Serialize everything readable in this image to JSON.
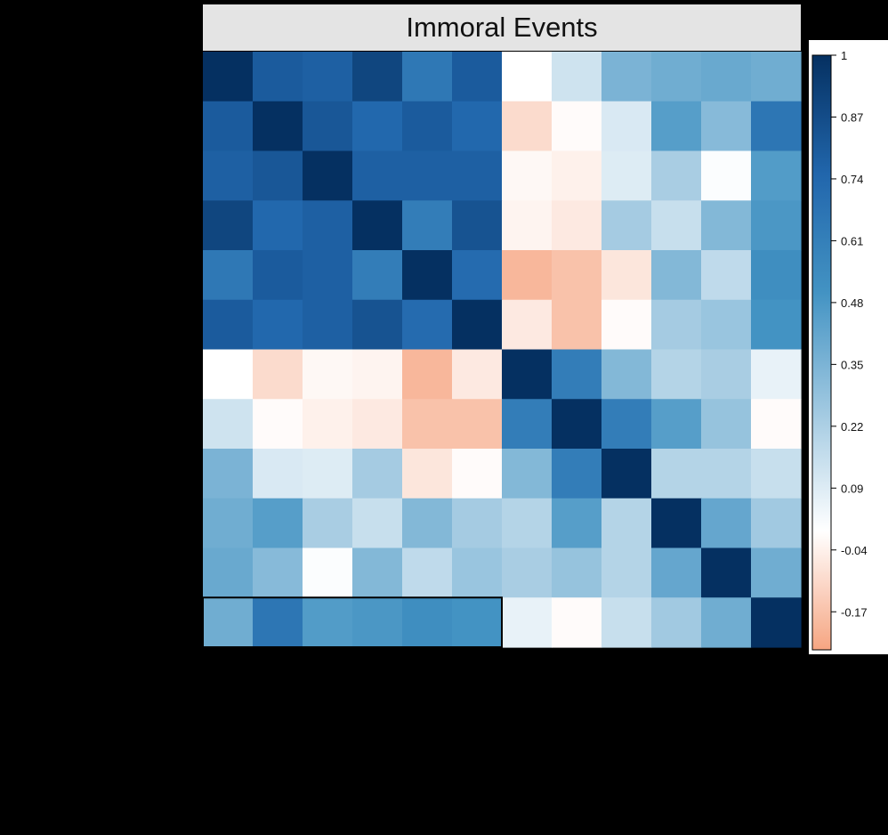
{
  "chart_data": {
    "type": "heatmap",
    "title": "Immoral Events",
    "xlabel": "",
    "ylabel": "",
    "rows": 12,
    "cols": 12,
    "values": [
      [
        1.0,
        0.8,
        0.78,
        0.9,
        0.65,
        0.8,
        0.0,
        0.13,
        0.35,
        0.38,
        0.4,
        0.38
      ],
      [
        0.8,
        1.0,
        0.82,
        0.74,
        0.8,
        0.74,
        -0.1,
        -0.01,
        0.1,
        0.45,
        0.32,
        0.66
      ],
      [
        0.78,
        0.82,
        1.0,
        0.78,
        0.78,
        0.78,
        -0.02,
        -0.04,
        0.09,
        0.23,
        0.01,
        0.46
      ],
      [
        0.9,
        0.74,
        0.78,
        1.0,
        0.62,
        0.84,
        -0.03,
        -0.06,
        0.24,
        0.15,
        0.33,
        0.48
      ],
      [
        0.65,
        0.8,
        0.78,
        0.62,
        1.0,
        0.72,
        -0.2,
        -0.17,
        -0.07,
        0.33,
        0.17,
        0.53
      ],
      [
        0.8,
        0.74,
        0.78,
        0.84,
        0.72,
        1.0,
        -0.06,
        -0.17,
        -0.01,
        0.24,
        0.27,
        0.5
      ],
      [
        0.0,
        -0.1,
        -0.02,
        -0.03,
        -0.2,
        -0.06,
        1.0,
        0.62,
        0.33,
        0.2,
        0.23,
        0.06
      ],
      [
        0.13,
        -0.01,
        -0.04,
        -0.06,
        -0.17,
        -0.17,
        0.62,
        1.0,
        0.62,
        0.45,
        0.28,
        -0.01
      ],
      [
        0.35,
        0.1,
        0.09,
        0.24,
        -0.07,
        -0.01,
        0.33,
        0.62,
        1.0,
        0.2,
        0.2,
        0.15
      ],
      [
        0.38,
        0.45,
        0.23,
        0.15,
        0.33,
        0.24,
        0.2,
        0.45,
        0.2,
        1.0,
        0.41,
        0.25
      ],
      [
        0.4,
        0.32,
        0.01,
        0.33,
        0.17,
        0.27,
        0.23,
        0.28,
        0.2,
        0.41,
        1.0,
        0.38
      ],
      [
        0.38,
        0.66,
        0.46,
        0.48,
        0.53,
        0.5,
        0.06,
        -0.01,
        0.15,
        0.25,
        0.38,
        1.0
      ]
    ],
    "highlight": {
      "row": 11,
      "col_start": 0,
      "col_end": 5
    },
    "color_scale": {
      "min": -0.25,
      "max": 1.0,
      "stops": [
        {
          "value": -0.25,
          "color": "#f6a582"
        },
        {
          "value": 0.0,
          "color": "#ffffff"
        },
        {
          "value": 0.5,
          "color": "#4393c3"
        },
        {
          "value": 0.75,
          "color": "#2166ac"
        },
        {
          "value": 1.0,
          "color": "#053061"
        }
      ]
    },
    "legend": {
      "placement": "right",
      "ticks": [
        1,
        0.87,
        0.74,
        0.61,
        0.48,
        0.35,
        0.22,
        0.09,
        -0.04,
        -0.17
      ],
      "tick_labels": [
        "1",
        "0.87",
        "0.74",
        "0.61",
        "0.48",
        "0.35",
        "0.22",
        "0.09",
        "-0.04",
        "-0.17"
      ]
    },
    "grid": false
  }
}
